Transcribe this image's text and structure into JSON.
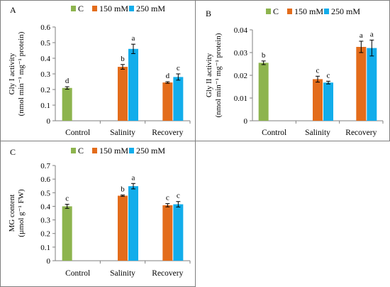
{
  "colors": {
    "C": "#8DB44E",
    "150 mM": "#E36C1B",
    "250 mM": "#12ADEB",
    "axis": "#7F7F7F",
    "border": "#7F7F7F"
  },
  "chart_data": [
    {
      "panel": "A",
      "type": "bar",
      "ylabel_line1": "Gly I activity",
      "ylabel_line2": "(nmol min⁻¹ mg⁻¹ protein)",
      "ylim": [
        0,
        0.6
      ],
      "yticks": [
        "0",
        "0.1",
        "0.2",
        "0.3",
        "0.4",
        "0.5",
        "0.6"
      ],
      "legend": [
        "C",
        "150 mM",
        "250 mM"
      ],
      "categories": [
        "Control",
        "Salinity",
        "Recovery"
      ],
      "bars": [
        {
          "category": "Control",
          "series": "C",
          "value": 0.21,
          "error": 0.008,
          "letter": "d"
        },
        {
          "category": "Salinity",
          "series": "150 mM",
          "value": 0.345,
          "error": 0.015,
          "letter": "b"
        },
        {
          "category": "Salinity",
          "series": "250 mM",
          "value": 0.46,
          "error": 0.03,
          "letter": "a"
        },
        {
          "category": "Recovery",
          "series": "150 mM",
          "value": 0.245,
          "error": 0.005,
          "letter": "d"
        },
        {
          "category": "Recovery",
          "series": "250 mM",
          "value": 0.28,
          "error": 0.02,
          "letter": "c"
        }
      ]
    },
    {
      "panel": "B",
      "type": "bar",
      "ylabel_line1": "Gly II activity",
      "ylabel_line2": "(nmol min⁻¹ mg⁻¹ protein)",
      "ylim": [
        0,
        0.04
      ],
      "yticks": [
        "0",
        "0.01",
        "0.02",
        "0.03",
        "0.04"
      ],
      "legend": [
        "C",
        "150 mM",
        "250 mM"
      ],
      "categories": [
        "Control",
        "Salinity",
        "Recovery"
      ],
      "bars": [
        {
          "category": "Control",
          "series": "C",
          "value": 0.0255,
          "error": 0.0008,
          "letter": "b"
        },
        {
          "category": "Salinity",
          "series": "150 mM",
          "value": 0.0183,
          "error": 0.0013,
          "letter": "c"
        },
        {
          "category": "Salinity",
          "series": "250 mM",
          "value": 0.0168,
          "error": 0.0006,
          "letter": "c"
        },
        {
          "category": "Recovery",
          "series": "150 mM",
          "value": 0.0325,
          "error": 0.0025,
          "letter": "a"
        },
        {
          "category": "Recovery",
          "series": "250 mM",
          "value": 0.032,
          "error": 0.0035,
          "letter": "a"
        }
      ]
    },
    {
      "panel": "C",
      "type": "bar",
      "ylabel_line1": "MG content",
      "ylabel_line2": "(µmol g⁻¹ FW)",
      "ylim": [
        0,
        0.7
      ],
      "yticks": [
        "0",
        "0.1",
        "0.2",
        "0.3",
        "0.4",
        "0.5",
        "0.6",
        "0.7"
      ],
      "legend": [
        "C",
        "150 mM",
        "250 mM"
      ],
      "categories": [
        "Control",
        "Salinity",
        "Recovery"
      ],
      "bars": [
        {
          "category": "Control",
          "series": "C",
          "value": 0.4,
          "error": 0.015,
          "letter": "c"
        },
        {
          "category": "Salinity",
          "series": "150 mM",
          "value": 0.478,
          "error": 0.005,
          "letter": "b"
        },
        {
          "category": "Salinity",
          "series": "250 mM",
          "value": 0.548,
          "error": 0.02,
          "letter": "a"
        },
        {
          "category": "Recovery",
          "series": "150 mM",
          "value": 0.408,
          "error": 0.012,
          "letter": "c"
        },
        {
          "category": "Recovery",
          "series": "250 mM",
          "value": 0.415,
          "error": 0.02,
          "letter": "c"
        }
      ]
    }
  ]
}
